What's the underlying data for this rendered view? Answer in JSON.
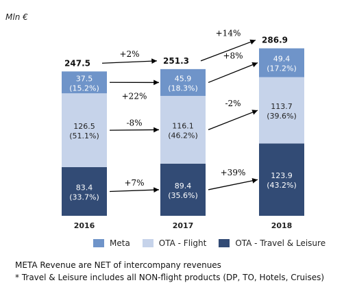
{
  "chart_data": {
    "type": "bar",
    "stacked": true,
    "unit": "Mln €",
    "categories": [
      "2016",
      "2017",
      "2018"
    ],
    "series": [
      {
        "name": "OTA - Travel & Leisure",
        "color": "#324b75",
        "text_color": "#ffffff",
        "values": [
          83.4,
          89.4,
          123.9
        ],
        "labels": [
          "83.4",
          "89.4",
          "123.9"
        ],
        "pct": [
          "(33.7%)",
          "(35.6%)",
          "(43.2%)"
        ]
      },
      {
        "name": "OTA - Flight",
        "color": "#c6d3ea",
        "text_color": "#222222",
        "values": [
          126.5,
          116.1,
          113.7
        ],
        "labels": [
          "126.5",
          "116.1",
          "113.7"
        ],
        "pct": [
          "(51.1%)",
          "(46.2%)",
          "(39.6%)"
        ]
      },
      {
        "name": "Meta",
        "color": "#6f94c9",
        "text_color": "#ffffff",
        "values": [
          37.5,
          45.9,
          49.4
        ],
        "labels": [
          "37.5",
          "45.9",
          "49.4"
        ],
        "pct": [
          "(15.2%)",
          "(18.3%)",
          "(17.2%)"
        ]
      }
    ],
    "totals": [
      "247.5",
      "251.3",
      "286.9"
    ],
    "ylim": [
      0,
      290
    ],
    "growth": {
      "total": [
        {
          "from": "2016",
          "to": "2017",
          "label": "+2%"
        },
        {
          "from": "2017",
          "to": "2018",
          "label": "+14%"
        }
      ],
      "segments": [
        {
          "series": "Meta",
          "from": "2016",
          "to": "2017",
          "label": "+22%"
        },
        {
          "series": "Meta",
          "from": "2017",
          "to": "2018",
          "label": "+8%"
        },
        {
          "series": "OTA - Flight",
          "from": "2016",
          "to": "2017",
          "label": "-8%"
        },
        {
          "series": "OTA - Flight",
          "from": "2017",
          "to": "2018",
          "label": "-2%"
        },
        {
          "series": "OTA - Travel & Leisure",
          "from": "2016",
          "to": "2017",
          "label": "+7%"
        },
        {
          "series": "OTA - Travel & Leisure",
          "from": "2017",
          "to": "2018",
          "label": "+39%"
        }
      ]
    },
    "grid": false,
    "legend": "bottom"
  },
  "notes": [
    "META Revenue are NET of intercompany revenues",
    "* Travel & Leisure includes all NON-flight products (DP, TO, Hotels, Cruises)"
  ]
}
